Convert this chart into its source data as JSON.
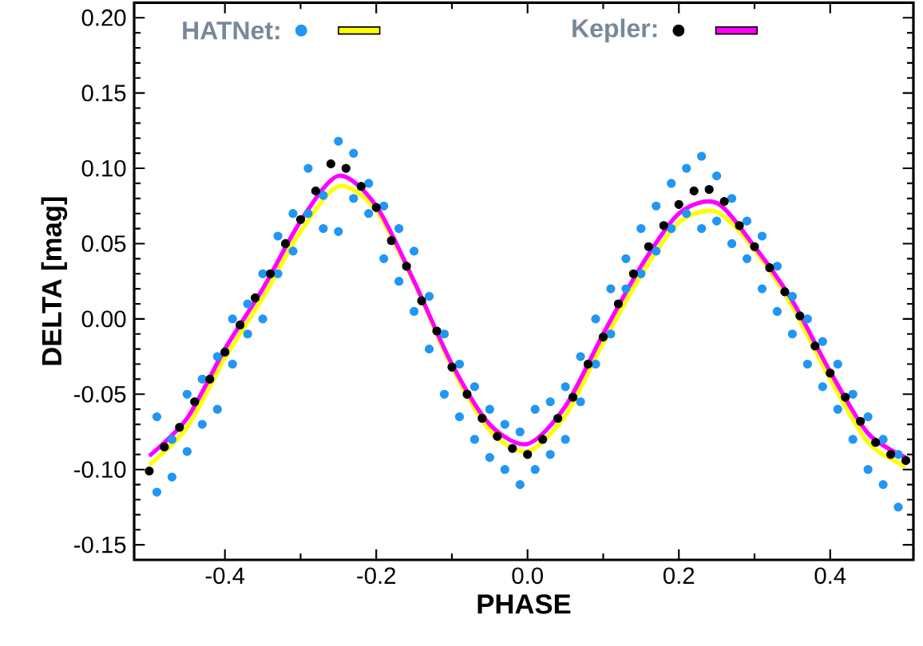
{
  "chart_data": {
    "type": "scatter",
    "xlabel": "PHASE",
    "ylabel": "DELTA [mag]",
    "xlim": [
      -0.52,
      0.51
    ],
    "ylim": [
      -0.16,
      0.21
    ],
    "xticks": [
      {
        "value": -0.4,
        "label": "-0.4"
      },
      {
        "value": -0.2,
        "label": "-0.2"
      },
      {
        "value": 0,
        "label": "0.0"
      },
      {
        "value": 0.2,
        "label": "0.2"
      },
      {
        "value": 0.4,
        "label": "0.4"
      }
    ],
    "yticks": [
      {
        "value": -0.15,
        "label": "-0.15"
      },
      {
        "value": -0.1,
        "label": "-0.10"
      },
      {
        "value": -0.05,
        "label": "-0.05"
      },
      {
        "value": 0,
        "label": "0.00"
      },
      {
        "value": 0.05,
        "label": "0.05"
      },
      {
        "value": 0.1,
        "label": "0.10"
      },
      {
        "value": 0.15,
        "label": "0.15"
      },
      {
        "value": 0.2,
        "label": "0.20"
      }
    ],
    "grid": false,
    "legend": "top",
    "series": [
      {
        "name": "HATNet:",
        "marker": "circle",
        "color": "#2196f3",
        "x": [
          -0.49,
          -0.49,
          -0.47,
          -0.47,
          -0.45,
          -0.45,
          -0.43,
          -0.43,
          -0.41,
          -0.41,
          -0.39,
          -0.39,
          -0.37,
          -0.37,
          -0.35,
          -0.35,
          -0.33,
          -0.33,
          -0.31,
          -0.31,
          -0.29,
          -0.29,
          -0.27,
          -0.27,
          -0.25,
          -0.25,
          -0.23,
          -0.23,
          -0.21,
          -0.21,
          -0.19,
          -0.19,
          -0.17,
          -0.17,
          -0.15,
          -0.15,
          -0.13,
          -0.13,
          -0.11,
          -0.11,
          -0.09,
          -0.09,
          -0.07,
          -0.07,
          -0.05,
          -0.05,
          -0.03,
          -0.03,
          -0.01,
          -0.01,
          0.01,
          0.01,
          0.03,
          0.03,
          0.05,
          0.05,
          0.07,
          0.07,
          0.09,
          0.09,
          0.11,
          0.11,
          0.13,
          0.13,
          0.15,
          0.15,
          0.17,
          0.17,
          0.19,
          0.19,
          0.21,
          0.21,
          0.23,
          0.23,
          0.25,
          0.25,
          0.27,
          0.27,
          0.29,
          0.29,
          0.31,
          0.31,
          0.33,
          0.33,
          0.35,
          0.35,
          0.37,
          0.37,
          0.39,
          0.39,
          0.41,
          0.41,
          0.43,
          0.43,
          0.45,
          0.45,
          0.47,
          0.47,
          0.49,
          0.49
        ],
        "values": [
          -0.115,
          -0.065,
          -0.105,
          -0.08,
          -0.088,
          -0.05,
          -0.04,
          -0.07,
          -0.025,
          -0.06,
          0.0,
          -0.03,
          0.01,
          -0.01,
          0.03,
          0.0,
          0.055,
          0.03,
          0.07,
          0.045,
          0.1,
          0.07,
          0.082,
          0.06,
          0.118,
          0.058,
          0.11,
          0.08,
          0.07,
          0.09,
          0.04,
          0.075,
          0.06,
          0.025,
          0.045,
          0.005,
          0.015,
          -0.02,
          -0.01,
          -0.05,
          -0.03,
          -0.065,
          -0.08,
          -0.045,
          -0.092,
          -0.06,
          -0.1,
          -0.07,
          -0.11,
          -0.075,
          -0.1,
          -0.06,
          -0.09,
          -0.055,
          -0.08,
          -0.045,
          -0.055,
          -0.025,
          -0.03,
          0.0,
          -0.01,
          0.02,
          0.02,
          0.04,
          0.03,
          0.06,
          0.045,
          0.075,
          0.06,
          0.09,
          0.07,
          0.1,
          0.06,
          0.108,
          0.065,
          0.095,
          0.05,
          0.08,
          0.04,
          0.065,
          0.02,
          0.055,
          0.005,
          0.035,
          -0.01,
          0.015,
          -0.03,
          0.0,
          -0.045,
          -0.015,
          -0.06,
          -0.03,
          -0.08,
          -0.05,
          -0.1,
          -0.065,
          -0.11,
          -0.08,
          -0.125,
          -0.09
        ]
      },
      {
        "type": "line",
        "color": "#ffff00",
        "x": [
          -0.5,
          -0.45,
          -0.4,
          -0.35,
          -0.3,
          -0.25,
          -0.2,
          -0.15,
          -0.1,
          -0.05,
          0,
          0.05,
          0.1,
          0.15,
          0.2,
          0.25,
          0.3,
          0.35,
          0.4,
          0.45,
          0.5
        ],
        "values": [
          -0.097,
          -0.072,
          -0.026,
          0.014,
          0.058,
          0.088,
          0.072,
          0.024,
          -0.032,
          -0.074,
          -0.088,
          -0.064,
          -0.016,
          0.029,
          0.064,
          0.071,
          0.046,
          0.008,
          -0.04,
          -0.082,
          -0.098
        ]
      },
      {
        "name": "Kepler:",
        "marker": "circle",
        "color": "#000000",
        "x": [
          -0.5,
          -0.48,
          -0.46,
          -0.44,
          -0.42,
          -0.4,
          -0.38,
          -0.36,
          -0.34,
          -0.32,
          -0.3,
          -0.28,
          -0.26,
          -0.24,
          -0.22,
          -0.2,
          -0.18,
          -0.16,
          -0.14,
          -0.12,
          -0.1,
          -0.08,
          -0.06,
          -0.04,
          -0.02,
          0,
          0.02,
          0.04,
          0.06,
          0.08,
          0.1,
          0.12,
          0.14,
          0.16,
          0.18,
          0.2,
          0.22,
          0.24,
          0.26,
          0.28,
          0.3,
          0.32,
          0.34,
          0.36,
          0.38,
          0.4,
          0.42,
          0.44,
          0.46,
          0.48,
          0.5
        ],
        "values": [
          -0.101,
          -0.085,
          -0.072,
          -0.055,
          -0.04,
          -0.022,
          -0.004,
          0.014,
          0.03,
          0.05,
          0.066,
          0.085,
          0.103,
          0.1,
          0.088,
          0.074,
          0.052,
          0.035,
          0.012,
          -0.008,
          -0.032,
          -0.05,
          -0.066,
          -0.078,
          -0.086,
          -0.09,
          -0.08,
          -0.066,
          -0.052,
          -0.03,
          -0.012,
          0.01,
          0.03,
          0.048,
          0.062,
          0.076,
          0.085,
          0.086,
          0.078,
          0.062,
          0.048,
          0.034,
          0.018,
          0.002,
          -0.018,
          -0.036,
          -0.052,
          -0.068,
          -0.082,
          -0.09,
          -0.094
        ]
      },
      {
        "type": "line",
        "color": "#ff00ff",
        "x": [
          -0.5,
          -0.45,
          -0.4,
          -0.35,
          -0.3,
          -0.25,
          -0.2,
          -0.15,
          -0.1,
          -0.05,
          0,
          0.05,
          0.1,
          0.15,
          0.2,
          0.25,
          0.3,
          0.35,
          0.4,
          0.45,
          0.5
        ],
        "values": [
          -0.091,
          -0.066,
          -0.02,
          0.02,
          0.065,
          0.095,
          0.075,
          0.025,
          -0.03,
          -0.07,
          -0.083,
          -0.058,
          -0.01,
          0.035,
          0.07,
          0.077,
          0.048,
          0.012,
          -0.035,
          -0.076,
          -0.092
        ]
      }
    ]
  }
}
